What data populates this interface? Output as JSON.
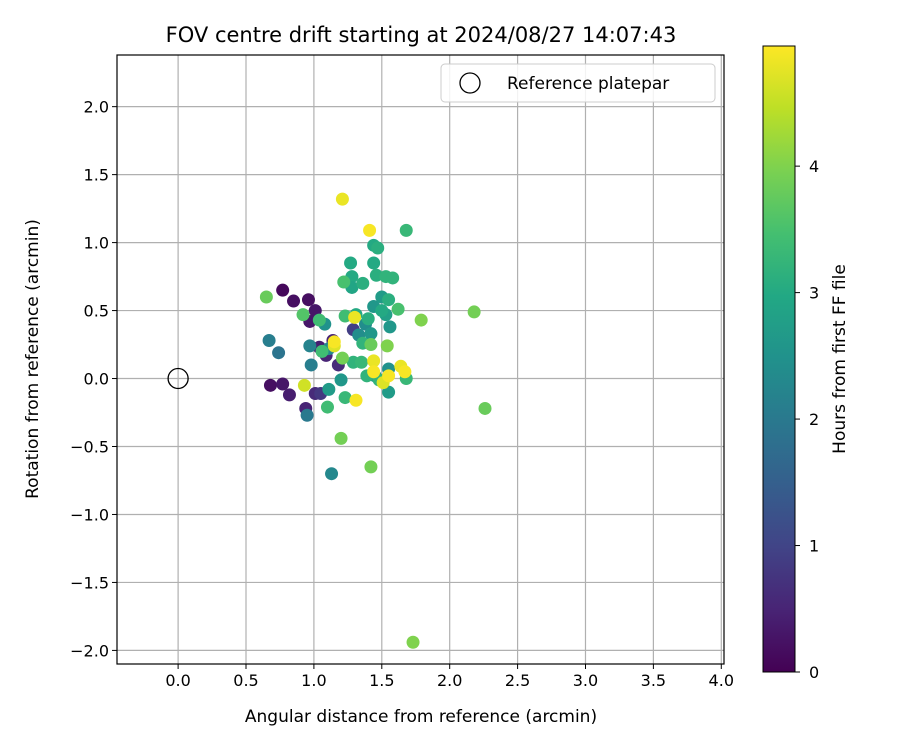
{
  "chart_data": {
    "type": "scatter",
    "title": "FOV centre drift starting at 2024/08/27 14:07:43",
    "xlabel": "Angular distance from reference (arcmin)",
    "ylabel": "Rotation from reference (arcmin)",
    "xlim": [
      -0.45,
      4.02
    ],
    "ylim": [
      -2.1,
      2.38
    ],
    "xticks": [
      "0.0",
      "0.5",
      "1.0",
      "1.5",
      "2.0",
      "2.5",
      "3.0",
      "3.5",
      "4.0"
    ],
    "xtick_values": [
      0,
      0.5,
      1,
      1.5,
      2,
      2.5,
      3,
      3.5,
      4
    ],
    "yticks": [
      "−2.0",
      "−1.5",
      "−1.0",
      "−0.5",
      "0.0",
      "0.5",
      "1.0",
      "1.5",
      "2.0"
    ],
    "ytick_values": [
      -2,
      -1.5,
      -1,
      -0.5,
      0,
      0.5,
      1,
      1.5,
      2
    ],
    "grid": true,
    "legend": {
      "placement": "top-right",
      "entries": [
        {
          "label": "Reference platepar",
          "marker": "open-circle"
        }
      ]
    },
    "reference_point": {
      "x": 0.0,
      "y": 0.0,
      "marker": "open-circle"
    },
    "colorbar": {
      "label": "Hours from first FF file",
      "colormap": "viridis",
      "range": [
        0,
        4.95
      ],
      "ticks": [
        "0",
        "1",
        "2",
        "3",
        "4"
      ],
      "tick_values": [
        0,
        1,
        2,
        3,
        4
      ]
    },
    "points": [
      {
        "x": 0.77,
        "y": 0.65,
        "h": 0.1
      },
      {
        "x": 0.85,
        "y": 0.57,
        "h": 0.2
      },
      {
        "x": 0.96,
        "y": 0.58,
        "h": 0.2
      },
      {
        "x": 1.01,
        "y": 0.5,
        "h": 0.3
      },
      {
        "x": 0.97,
        "y": 0.42,
        "h": 0.3
      },
      {
        "x": 1.04,
        "y": 0.23,
        "h": 0.4
      },
      {
        "x": 1.09,
        "y": 0.17,
        "h": 0.5
      },
      {
        "x": 1.14,
        "y": 0.28,
        "h": 0.5
      },
      {
        "x": 1.18,
        "y": 0.1,
        "h": 0.6
      },
      {
        "x": 0.68,
        "y": -0.05,
        "h": 0.2
      },
      {
        "x": 0.77,
        "y": -0.04,
        "h": 0.3
      },
      {
        "x": 0.82,
        "y": -0.12,
        "h": 0.4
      },
      {
        "x": 0.94,
        "y": -0.22,
        "h": 0.5
      },
      {
        "x": 1.01,
        "y": -0.11,
        "h": 0.6
      },
      {
        "x": 1.05,
        "y": -0.11,
        "h": 0.8
      },
      {
        "x": 1.29,
        "y": 0.36,
        "h": 0.9
      },
      {
        "x": 0.95,
        "y": -0.27,
        "h": 2.0
      },
      {
        "x": 0.67,
        "y": 0.28,
        "h": 2.1
      },
      {
        "x": 0.74,
        "y": 0.19,
        "h": 1.9
      },
      {
        "x": 0.97,
        "y": 0.24,
        "h": 2.2
      },
      {
        "x": 0.98,
        "y": 0.1,
        "h": 2.1
      },
      {
        "x": 1.11,
        "y": 0.22,
        "h": 2.3
      },
      {
        "x": 1.08,
        "y": 0.4,
        "h": 2.5
      },
      {
        "x": 1.13,
        "y": -0.7,
        "h": 2.3
      },
      {
        "x": 1.11,
        "y": -0.08,
        "h": 2.7
      },
      {
        "x": 1.2,
        "y": -0.01,
        "h": 2.6
      },
      {
        "x": 1.33,
        "y": 0.32,
        "h": 2.4
      },
      {
        "x": 1.38,
        "y": 0.4,
        "h": 2.4
      },
      {
        "x": 1.42,
        "y": 0.33,
        "h": 2.6
      },
      {
        "x": 1.44,
        "y": 0.53,
        "h": 2.6
      },
      {
        "x": 1.5,
        "y": 0.6,
        "h": 2.7
      },
      {
        "x": 1.45,
        "y": 0.02,
        "h": 2.6
      },
      {
        "x": 1.55,
        "y": 0.07,
        "h": 2.5
      },
      {
        "x": 1.56,
        "y": 0.38,
        "h": 2.6
      },
      {
        "x": 1.55,
        "y": -0.1,
        "h": 2.7
      },
      {
        "x": 1.53,
        "y": 0.47,
        "h": 2.8
      },
      {
        "x": 1.27,
        "y": 0.85,
        "h": 3.0
      },
      {
        "x": 1.28,
        "y": 0.75,
        "h": 3.0
      },
      {
        "x": 1.28,
        "y": 0.67,
        "h": 2.9
      },
      {
        "x": 1.31,
        "y": 0.47,
        "h": 3.0
      },
      {
        "x": 1.36,
        "y": 0.7,
        "h": 3.1
      },
      {
        "x": 1.44,
        "y": 0.98,
        "h": 3.0
      },
      {
        "x": 1.47,
        "y": 0.96,
        "h": 3.1
      },
      {
        "x": 1.44,
        "y": 0.85,
        "h": 3.0
      },
      {
        "x": 1.46,
        "y": 0.76,
        "h": 3.1
      },
      {
        "x": 1.53,
        "y": 0.75,
        "h": 3.2
      },
      {
        "x": 1.58,
        "y": 0.74,
        "h": 3.2
      },
      {
        "x": 1.55,
        "y": 0.58,
        "h": 3.1
      },
      {
        "x": 1.5,
        "y": 0.5,
        "h": 3.0
      },
      {
        "x": 1.4,
        "y": 0.44,
        "h": 3.1
      },
      {
        "x": 1.36,
        "y": 0.26,
        "h": 3.2
      },
      {
        "x": 1.29,
        "y": 0.12,
        "h": 3.2
      },
      {
        "x": 1.35,
        "y": 0.12,
        "h": 3.3
      },
      {
        "x": 1.39,
        "y": 0.02,
        "h": 3.2
      },
      {
        "x": 1.23,
        "y": -0.14,
        "h": 3.3
      },
      {
        "x": 1.1,
        "y": -0.21,
        "h": 3.4
      },
      {
        "x": 1.06,
        "y": 0.2,
        "h": 3.4
      },
      {
        "x": 1.04,
        "y": 0.43,
        "h": 3.4
      },
      {
        "x": 1.22,
        "y": 0.71,
        "h": 3.5
      },
      {
        "x": 1.23,
        "y": 0.46,
        "h": 3.4
      },
      {
        "x": 1.68,
        "y": 1.09,
        "h": 3.3
      },
      {
        "x": 1.62,
        "y": 0.51,
        "h": 3.5
      },
      {
        "x": 1.68,
        "y": 0.0,
        "h": 3.3
      },
      {
        "x": 1.48,
        "y": -0.01,
        "h": 3.2
      },
      {
        "x": 0.92,
        "y": 0.47,
        "h": 3.6
      },
      {
        "x": 0.65,
        "y": 0.6,
        "h": 3.8
      },
      {
        "x": 1.2,
        "y": -0.44,
        "h": 3.9
      },
      {
        "x": 1.42,
        "y": -0.65,
        "h": 3.9
      },
      {
        "x": 1.42,
        "y": 0.25,
        "h": 3.8
      },
      {
        "x": 1.54,
        "y": 0.24,
        "h": 4.0
      },
      {
        "x": 1.21,
        "y": 0.15,
        "h": 3.9
      },
      {
        "x": 1.79,
        "y": 0.43,
        "h": 4.0
      },
      {
        "x": 2.18,
        "y": 0.49,
        "h": 3.9
      },
      {
        "x": 2.26,
        "y": -0.22,
        "h": 3.8
      },
      {
        "x": 1.73,
        "y": -1.94,
        "h": 4.0
      },
      {
        "x": 1.21,
        "y": 1.32,
        "h": 4.8
      },
      {
        "x": 1.41,
        "y": 1.09,
        "h": 4.9
      },
      {
        "x": 1.3,
        "y": 0.45,
        "h": 4.8
      },
      {
        "x": 1.15,
        "y": 0.24,
        "h": 4.7
      },
      {
        "x": 1.15,
        "y": 0.27,
        "h": 4.9
      },
      {
        "x": 1.44,
        "y": 0.13,
        "h": 4.8
      },
      {
        "x": 1.44,
        "y": 0.05,
        "h": 4.9
      },
      {
        "x": 1.51,
        "y": -0.03,
        "h": 4.7
      },
      {
        "x": 1.55,
        "y": 0.02,
        "h": 4.9
      },
      {
        "x": 1.64,
        "y": 0.09,
        "h": 4.8
      },
      {
        "x": 1.67,
        "y": 0.05,
        "h": 4.9
      },
      {
        "x": 0.93,
        "y": -0.05,
        "h": 4.6
      },
      {
        "x": 1.31,
        "y": -0.16,
        "h": 4.9
      }
    ]
  }
}
